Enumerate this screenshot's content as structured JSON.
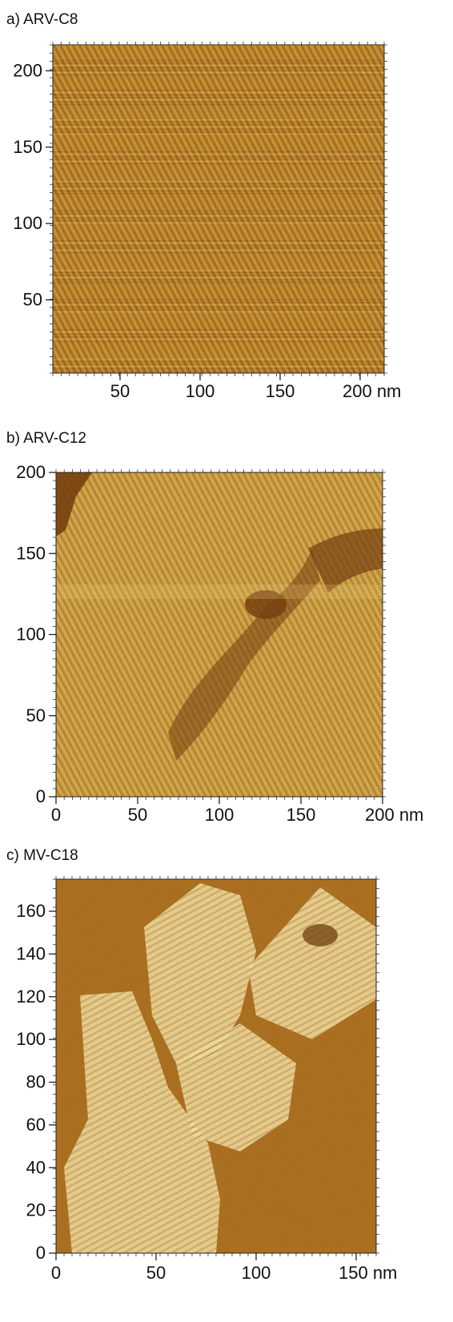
{
  "panels": [
    {
      "title": "a) ARV-C8",
      "x_ticks": [
        "50",
        "100",
        "150",
        "200 nm"
      ],
      "y_ticks": [
        "50",
        "100",
        "150",
        "200"
      ],
      "x_range": [
        8,
        215
      ],
      "y_range": [
        2,
        217
      ],
      "x_tick_values": [
        50,
        100,
        150,
        200
      ],
      "y_tick_values": [
        50,
        100,
        150,
        200
      ],
      "image_style": "fine-stripes",
      "colors": {
        "base": "#b77a1e",
        "dark": "#6a3a0b",
        "light": "#f2cf78"
      }
    },
    {
      "title": "b) ARV-C12",
      "x_ticks": [
        "0",
        "50",
        "100",
        "150",
        "200 nm"
      ],
      "y_ticks": [
        "0",
        "50",
        "100",
        "150",
        "200"
      ],
      "x_range": [
        0,
        200
      ],
      "y_range": [
        0,
        200
      ],
      "x_tick_values": [
        0,
        50,
        100,
        150,
        200
      ],
      "y_tick_values": [
        0,
        50,
        100,
        150,
        200
      ],
      "image_style": "terrace",
      "colors": {
        "base": "#c99a3a",
        "dark": "#6a3207",
        "light": "#ecd08a"
      }
    },
    {
      "title": "c) MV-C18",
      "x_ticks": [
        "0",
        "50",
        "100",
        "150 nm"
      ],
      "y_ticks": [
        "0",
        "20",
        "40",
        "60",
        "80",
        "100",
        "120",
        "140",
        "160"
      ],
      "x_range": [
        0,
        160
      ],
      "y_range": [
        0,
        175
      ],
      "x_tick_values": [
        0,
        50,
        100,
        150
      ],
      "y_tick_values": [
        0,
        20,
        40,
        60,
        80,
        100,
        120,
        140,
        160
      ],
      "image_style": "domains",
      "colors": {
        "base": "#a86a1c",
        "dark": "#6b3b0c",
        "light": "#f7e3a6"
      }
    }
  ]
}
